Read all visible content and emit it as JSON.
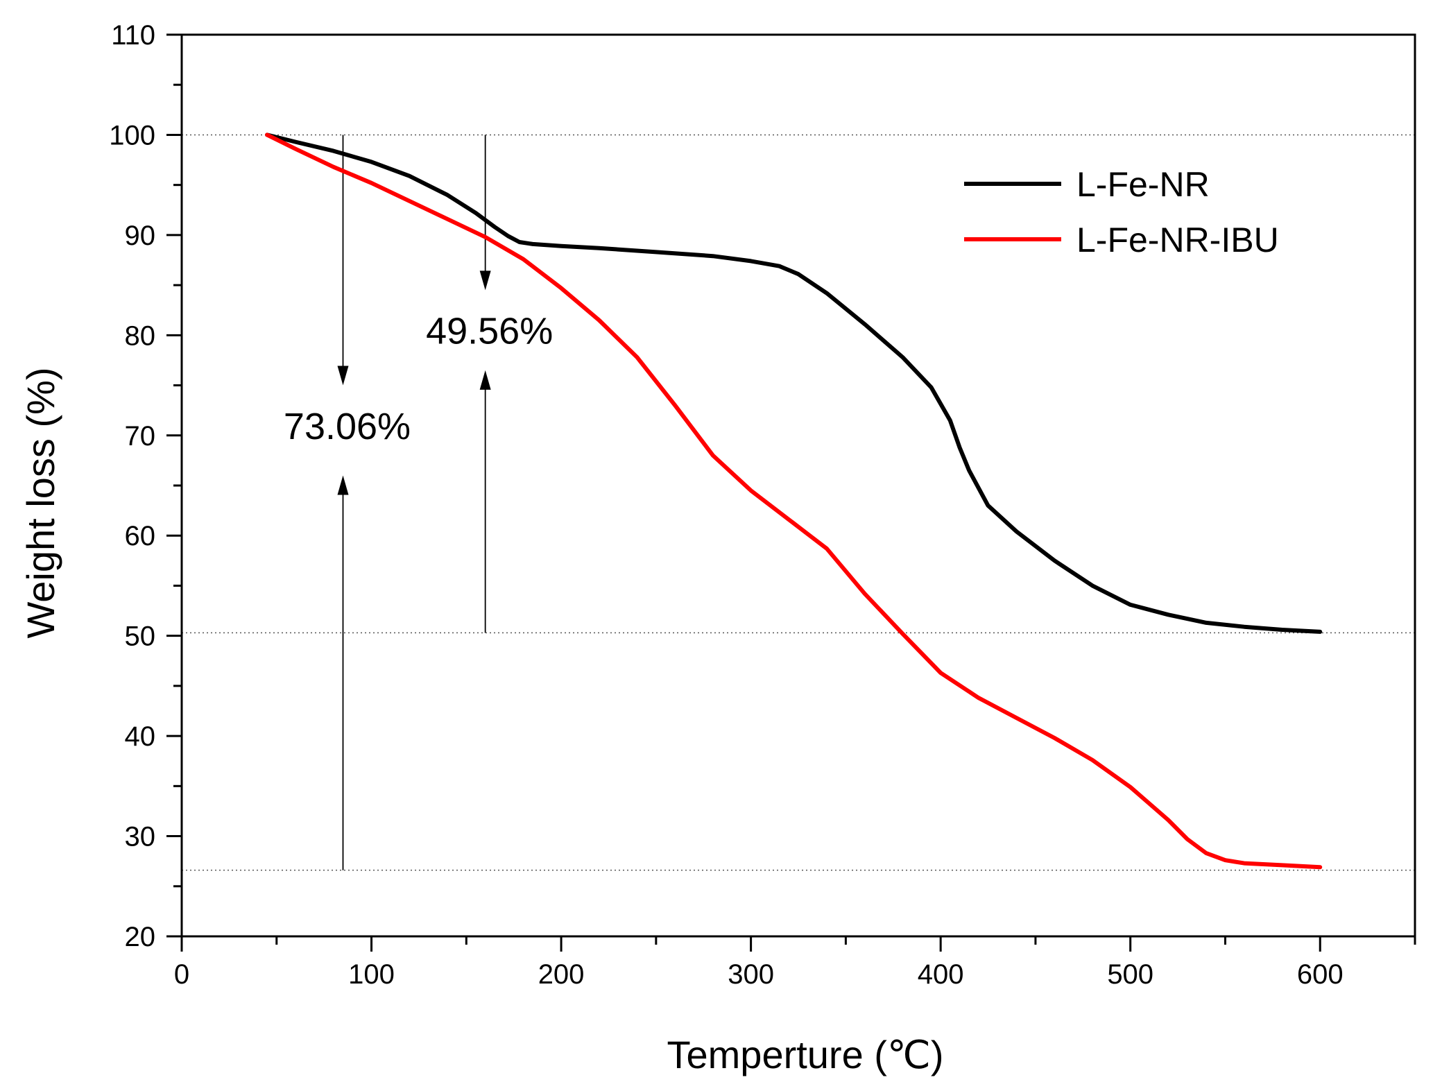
{
  "chart_data": {
    "type": "line",
    "title": "",
    "xlabel": "Temperture (℃)",
    "ylabel": "Weight loss (%)",
    "xlim": [
      0,
      650
    ],
    "ylim": [
      20,
      110
    ],
    "xticks": [
      0,
      100,
      200,
      300,
      400,
      500,
      600
    ],
    "yticks": [
      20,
      30,
      40,
      50,
      60,
      70,
      80,
      90,
      100,
      110
    ],
    "x_minor_step": 50,
    "y_minor_step": 5,
    "grid": false,
    "legend_position": "top-right",
    "reference_lines": [
      100,
      50.3,
      26.6
    ],
    "series": [
      {
        "name": "L-Fe-NR",
        "color": "#000000",
        "x": [
          45,
          60,
          80,
          100,
          120,
          140,
          155,
          165,
          172,
          178,
          185,
          200,
          220,
          250,
          280,
          300,
          315,
          325,
          340,
          360,
          380,
          395,
          405,
          410,
          415,
          425,
          440,
          460,
          480,
          500,
          520,
          540,
          560,
          580,
          600
        ],
        "y": [
          100,
          99.3,
          98.4,
          97.3,
          95.9,
          94,
          92.2,
          90.8,
          89.9,
          89.3,
          89.1,
          88.9,
          88.7,
          88.3,
          87.9,
          87.4,
          86.9,
          86.1,
          84.2,
          81.1,
          77.8,
          74.8,
          71.5,
          68.8,
          66.5,
          63,
          60.4,
          57.5,
          55,
          53.1,
          52.1,
          51.3,
          50.9,
          50.6,
          50.4
        ]
      },
      {
        "name": "L-Fe-NR-IBU",
        "color": "#ff0000",
        "x": [
          45,
          60,
          80,
          100,
          120,
          140,
          160,
          180,
          200,
          220,
          240,
          260,
          280,
          300,
          320,
          340,
          360,
          380,
          400,
          420,
          440,
          460,
          480,
          500,
          520,
          530,
          540,
          550,
          560,
          580,
          600
        ],
        "y": [
          100,
          98.6,
          96.8,
          95.2,
          93.4,
          91.6,
          89.8,
          87.6,
          84.7,
          81.5,
          77.8,
          73,
          68,
          64.5,
          61.6,
          58.7,
          54.2,
          50.2,
          46.3,
          43.8,
          41.8,
          39.8,
          37.6,
          34.9,
          31.6,
          29.7,
          28.3,
          27.6,
          27.3,
          27.1,
          26.9
        ]
      }
    ],
    "annotations": [
      {
        "label": "73.06%",
        "x": 85,
        "from_y": 100,
        "to_y": 26.6,
        "arrow_down_tip_y": 75,
        "arrow_up_tip_y": 66,
        "text_y": 70.9
      },
      {
        "label": "49.56%",
        "x": 160,
        "from_y": 100,
        "to_y": 50.3,
        "arrow_down_tip_y": 84.5,
        "arrow_up_tip_y": 76.5,
        "text_y": 80.4
      }
    ]
  }
}
